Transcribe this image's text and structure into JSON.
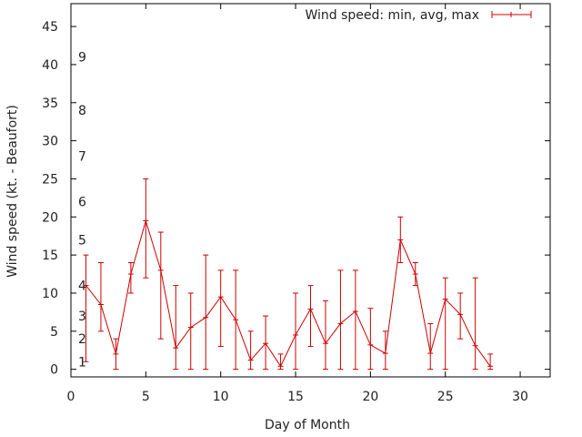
{
  "chart_data": {
    "type": "line",
    "title": "",
    "xlabel": "Day of Month",
    "ylabel": "Wind speed (kt. - Beaufort)",
    "xlim": [
      0,
      32
    ],
    "ylim": [
      -1,
      48
    ],
    "xticks": [
      0,
      5,
      10,
      15,
      20,
      25,
      30
    ],
    "yticks": [
      0,
      5,
      10,
      15,
      20,
      25,
      30,
      35,
      40,
      45
    ],
    "grid": false,
    "legend": {
      "position": "top-right",
      "entries": [
        "Wind speed: min, avg, max"
      ]
    },
    "series": [
      {
        "name": "Wind speed: min, avg, max",
        "color": "#cc0000",
        "x": [
          1,
          2,
          3,
          4,
          5,
          6,
          7,
          8,
          9,
          10,
          11,
          12,
          13,
          14,
          15,
          16,
          17,
          18,
          19,
          20,
          21,
          22,
          23,
          24,
          25,
          26,
          27,
          28
        ],
        "avg": [
          11,
          8.5,
          2,
          12.5,
          19.5,
          13,
          2.8,
          5.5,
          6.8,
          9.5,
          6.5,
          1.2,
          3.4,
          0.4,
          4.5,
          7.9,
          3.4,
          6,
          7.6,
          3.2,
          2.1,
          17,
          12.5,
          2.1,
          9.2,
          7.2,
          3.1,
          0.4
        ],
        "min": [
          1,
          5,
          0,
          10,
          12,
          4,
          0,
          0,
          0,
          3,
          0,
          0,
          0,
          0,
          0,
          3,
          0,
          0,
          0,
          0,
          0,
          14,
          11,
          0,
          0,
          4,
          0,
          0
        ],
        "max": [
          15,
          14,
          4,
          14,
          25,
          18,
          11,
          10,
          15,
          13,
          13,
          5,
          7,
          2,
          10,
          11,
          9,
          13,
          13,
          8,
          5,
          20,
          14,
          6,
          12,
          10,
          12,
          2
        ]
      }
    ],
    "beaufort_labels": [
      {
        "label": "1",
        "y": 1
      },
      {
        "label": "2",
        "y": 4
      },
      {
        "label": "3",
        "y": 7
      },
      {
        "label": "4",
        "y": 11
      },
      {
        "label": "5",
        "y": 17
      },
      {
        "label": "6",
        "y": 22
      },
      {
        "label": "7",
        "y": 28
      },
      {
        "label": "8",
        "y": 34
      },
      {
        "label": "9",
        "y": 41
      }
    ]
  }
}
